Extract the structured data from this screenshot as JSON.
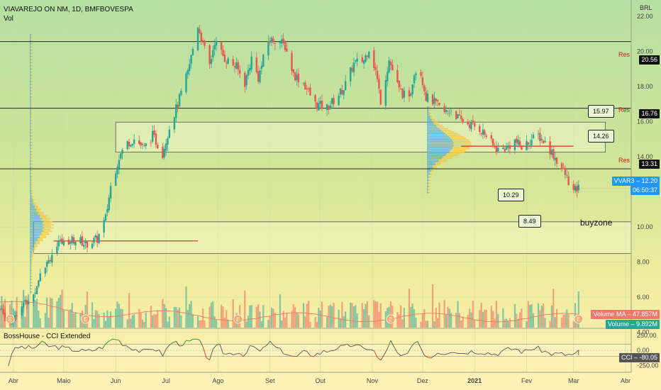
{
  "header": {
    "title": "VIAVAREJO ON NM, 1D, BMFBOVESPA",
    "sub": "Vol",
    "currency": "BRL",
    "indicator": "BossHouse - CCI Extended"
  },
  "price_tags": [
    {
      "label": "20.56",
      "color": "#111111"
    },
    {
      "label": "16.76",
      "color": "#111111"
    },
    {
      "label": "13.31",
      "color": "#111111"
    },
    {
      "label": "VVAR3 – 12.20",
      "color": "#2196f3"
    },
    {
      "label": "06:50:37",
      "color": "#2196f3"
    },
    {
      "label": "Volume MA – 47.857M",
      "color": "#f2776a"
    },
    {
      "label": "Volume – 9.892M",
      "color": "#26a69a"
    },
    {
      "label": "CCI – -80.05",
      "color": "#555555"
    }
  ],
  "annotations": {
    "res": "Res",
    "callouts": [
      "15.97",
      "14.26",
      "10.29",
      "8.49"
    ],
    "buyzone": "buyzone",
    "earnings": "E"
  },
  "chart_data": [
    {
      "type": "candlestick",
      "title": "VIAVAREJO ON NM, 1D, BMFBOVESPA",
      "x_ticks": [
        "Abr",
        "Maio",
        "Jun",
        "Jul",
        "Ago",
        "Set",
        "Out",
        "Nov",
        "Dez",
        "2021",
        "Fev",
        "Mar",
        "Abr"
      ],
      "y_ticks": [
        4.0,
        6.0,
        8.0,
        10.0,
        12.0,
        14.0,
        16.0,
        18.0,
        20.0,
        22.0
      ],
      "ylim": [
        3.0,
        23.4
      ],
      "x_range": [
        "2020-03-24",
        "2021-04-01"
      ],
      "key_path": [
        [
          "2020-03-24",
          5.3
        ],
        [
          "2020-03-30",
          4.5
        ],
        [
          "2020-04-03",
          5.2
        ],
        [
          "2020-04-13",
          6.1
        ],
        [
          "2020-04-17",
          7.5
        ],
        [
          "2020-04-23",
          8.3
        ],
        [
          "2020-04-27",
          8.9
        ],
        [
          "2020-05-05",
          9.3
        ],
        [
          "2020-05-11",
          9.2
        ],
        [
          "2020-05-14",
          9.0
        ],
        [
          "2020-05-21",
          9.3
        ],
        [
          "2020-05-26",
          10.5
        ],
        [
          "2020-05-29",
          12.3
        ],
        [
          "2020-06-03",
          14.0
        ],
        [
          "2020-06-08",
          14.8
        ],
        [
          "2020-06-12",
          15.0
        ],
        [
          "2020-06-18",
          14.5
        ],
        [
          "2020-06-23",
          15.2
        ],
        [
          "2020-06-29",
          14.2
        ],
        [
          "2020-07-03",
          15.7
        ],
        [
          "2020-07-08",
          17.0
        ],
        [
          "2020-07-14",
          18.8
        ],
        [
          "2020-07-20",
          21.5
        ],
        [
          "2020-07-23",
          20.4
        ],
        [
          "2020-07-27",
          19.2
        ],
        [
          "2020-07-30",
          20.6
        ],
        [
          "2020-08-05",
          19.6
        ],
        [
          "2020-08-12",
          19.1
        ],
        [
          "2020-08-17",
          18.2
        ],
        [
          "2020-08-21",
          19.6
        ],
        [
          "2020-08-25",
          18.5
        ],
        [
          "2020-08-31",
          20.6
        ],
        [
          "2020-09-05",
          20.7
        ],
        [
          "2020-09-10",
          20.3
        ],
        [
          "2020-09-15",
          18.7
        ],
        [
          "2020-09-21",
          18.2
        ],
        [
          "2020-09-28",
          17.0
        ],
        [
          "2020-10-05",
          16.8
        ],
        [
          "2020-10-09",
          17.2
        ],
        [
          "2020-10-15",
          17.9
        ],
        [
          "2020-10-21",
          19.3
        ],
        [
          "2020-10-27",
          19.5
        ],
        [
          "2020-10-30",
          20.2
        ],
        [
          "2020-11-03",
          18.9
        ],
        [
          "2020-11-06",
          17.2
        ],
        [
          "2020-11-11",
          19.5
        ],
        [
          "2020-11-17",
          17.8
        ],
        [
          "2020-11-23",
          17.2
        ],
        [
          "2020-11-26",
          18.9
        ],
        [
          "2020-11-30",
          18.8
        ],
        [
          "2020-12-03",
          17.4
        ],
        [
          "2020-12-08",
          17.1
        ],
        [
          "2020-12-14",
          16.5
        ],
        [
          "2020-12-18",
          16.7
        ],
        [
          "2020-12-23",
          16.1
        ],
        [
          "2021-01-04",
          15.6
        ],
        [
          "2021-01-08",
          15.2
        ],
        [
          "2021-01-12",
          14.6
        ],
        [
          "2021-01-15",
          14.4
        ],
        [
          "2021-01-20",
          14.5
        ],
        [
          "2021-01-25",
          14.9
        ],
        [
          "2021-01-29",
          14.5
        ],
        [
          "2021-02-03",
          14.9
        ],
        [
          "2021-02-08",
          15.2
        ],
        [
          "2021-02-12",
          14.8
        ],
        [
          "2021-02-17",
          14.1
        ],
        [
          "2021-02-22",
          13.3
        ],
        [
          "2021-02-25",
          12.8
        ],
        [
          "2021-03-01",
          12.0
        ],
        [
          "2021-03-04",
          12.2
        ]
      ],
      "horizontal_levels": [
        {
          "value": 20.56,
          "label": "Res"
        },
        {
          "value": 16.76,
          "label": "Res"
        },
        {
          "value": 13.31,
          "label": "Res"
        }
      ],
      "zones": [
        {
          "from": 14.26,
          "to": 15.97
        },
        {
          "from": 8.49,
          "to": 10.29,
          "label": "buyzone"
        }
      ],
      "red_lines": [
        {
          "value": 9.2,
          "from": "2020-04-25",
          "to": "2020-07-20"
        },
        {
          "value": 14.6,
          "from": "2020-12-24",
          "to": "2021-03-01"
        }
      ],
      "last": 12.2
    },
    {
      "type": "bar",
      "title": "Volume",
      "series": [
        {
          "name": "Volume MA",
          "last": "47.857M"
        },
        {
          "name": "Volume",
          "last": "9.892M"
        }
      ]
    },
    {
      "type": "line",
      "title": "BossHouse - CCI Extended",
      "y_ticks": [
        250.0,
        0.0,
        -250.0
      ],
      "ylim": [
        -300,
        300
      ],
      "levels": [
        100,
        -100
      ],
      "last": -80.05
    }
  ]
}
